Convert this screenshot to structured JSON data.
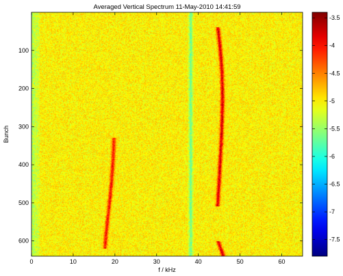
{
  "chart_data": {
    "type": "heatmap",
    "title": "Averaged Vertical Spectrum 11-May-2010 14:41:59",
    "xlabel": "f / kHz",
    "ylabel": "Bunch",
    "xlim": [
      0,
      65
    ],
    "ylim": [
      0,
      640
    ],
    "y_direction": "reversed",
    "xticks": [
      0,
      10,
      20,
      30,
      40,
      50,
      60
    ],
    "yticks": [
      100,
      200,
      300,
      400,
      500,
      600
    ],
    "colorbar": {
      "range": [
        -7.8,
        -3.4
      ],
      "ticks": [
        -3.5,
        -4,
        -4.5,
        -5,
        -5.5,
        -6,
        -6.5,
        -7,
        -7.5
      ],
      "colormap": "jet"
    },
    "background_level": -5.0,
    "features": [
      {
        "name": "low-frequency edge",
        "f_start": 0,
        "f_end": 2,
        "bunch_start": 0,
        "bunch_end": 640,
        "level": -5.4
      },
      {
        "name": "vertical band near 38 kHz",
        "f_center": 38.2,
        "f_width": 0.8,
        "bunch_start": 0,
        "bunch_end": 640,
        "level": -5.7
      },
      {
        "name": "line near 19 kHz",
        "path": [
          [
            19.8,
            330
          ],
          [
            19.6,
            380
          ],
          [
            19.3,
            430
          ],
          [
            18.9,
            480
          ],
          [
            18.4,
            530
          ],
          [
            17.9,
            580
          ],
          [
            17.6,
            620
          ]
        ],
        "level": -4.0
      },
      {
        "name": "line near 46 kHz",
        "path": [
          [
            44.7,
            40
          ],
          [
            45.3,
            100
          ],
          [
            45.7,
            160
          ],
          [
            45.8,
            220
          ],
          [
            45.7,
            280
          ],
          [
            45.5,
            340
          ],
          [
            45.2,
            400
          ],
          [
            44.9,
            460
          ],
          [
            44.6,
            510
          ]
        ],
        "level": -3.8
      },
      {
        "name": "line near 45 kHz (bottom)",
        "path": [
          [
            44.7,
            600
          ],
          [
            45.2,
            615
          ],
          [
            45.7,
            630
          ],
          [
            46.0,
            640
          ]
        ],
        "level": -3.8
      }
    ]
  }
}
